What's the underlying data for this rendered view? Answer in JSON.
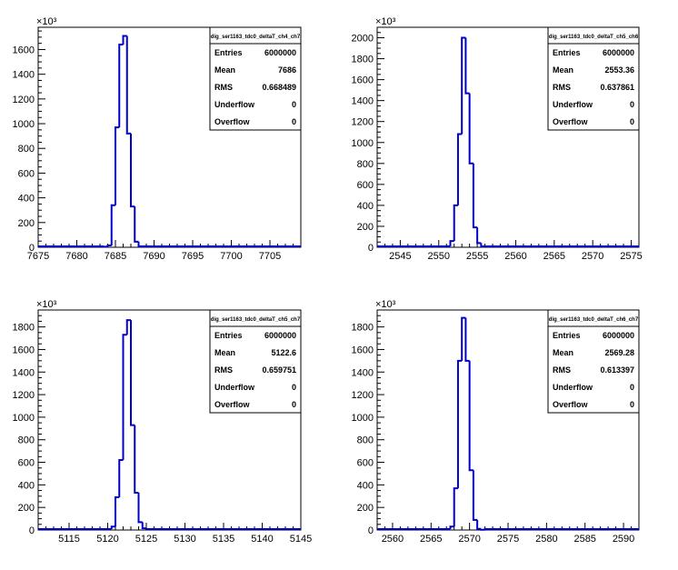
{
  "panels": [
    {
      "multiplier": "×10³",
      "stats": {
        "title": "dig_ser1163_tdc0_deltaT_ch4_ch7",
        "rows": [
          {
            "label": "Entries",
            "value": "6000000"
          },
          {
            "label": "Mean",
            "value": "7686"
          },
          {
            "label": "RMS",
            "value": "0.668489"
          },
          {
            "label": "Underflow",
            "value": "0"
          },
          {
            "label": "Overflow",
            "value": "0"
          }
        ]
      },
      "chart_data": {
        "type": "histogram",
        "title": "dig_ser1163_tdc0_deltaT_ch4_ch7",
        "xlim": [
          7675,
          7709
        ],
        "ylim": [
          0,
          1780
        ],
        "xticks": [
          7675,
          7680,
          7685,
          7690,
          7695,
          7700,
          7705
        ],
        "yticks": [
          0,
          200,
          400,
          600,
          800,
          1000,
          1200,
          1400,
          1600
        ],
        "bin_width": 0.5,
        "edges": [
          7683.5,
          7684,
          7684.5,
          7685,
          7685.5,
          7686,
          7686.5,
          7687,
          7687.5,
          7688
        ],
        "values": [
          5,
          15,
          340,
          970,
          1640,
          1710,
          920,
          330,
          45
        ]
      }
    },
    {
      "multiplier": "×10³",
      "stats": {
        "title": "dig_ser1163_tdc0_deltaT_ch5_ch6",
        "rows": [
          {
            "label": "Entries",
            "value": "6000000"
          },
          {
            "label": "Mean",
            "value": "2553.36"
          },
          {
            "label": "RMS",
            "value": "0.637861"
          },
          {
            "label": "Underflow",
            "value": "0"
          },
          {
            "label": "Overflow",
            "value": "0"
          }
        ]
      },
      "chart_data": {
        "type": "histogram",
        "title": "dig_ser1163_tdc0_deltaT_ch5_ch6",
        "xlim": [
          2542,
          2576
        ],
        "ylim": [
          0,
          2100
        ],
        "xticks": [
          2545,
          2550,
          2555,
          2560,
          2565,
          2570,
          2575
        ],
        "yticks": [
          0,
          200,
          400,
          600,
          800,
          1000,
          1200,
          1400,
          1600,
          1800,
          2000
        ],
        "bin_width": 0.5,
        "edges": [
          2551,
          2551.5,
          2552,
          2552.5,
          2553,
          2553.5,
          2554,
          2554.5,
          2555,
          2555.5
        ],
        "values": [
          10,
          60,
          400,
          1080,
          2000,
          1470,
          800,
          190,
          40
        ]
      }
    },
    {
      "multiplier": "×10³",
      "stats": {
        "title": "dig_ser1163_tdc0_deltaT_ch5_ch7",
        "rows": [
          {
            "label": "Entries",
            "value": "6000000"
          },
          {
            "label": "Mean",
            "value": "5122.6"
          },
          {
            "label": "RMS",
            "value": "0.659751"
          },
          {
            "label": "Underflow",
            "value": "0"
          },
          {
            "label": "Overflow",
            "value": "0"
          }
        ]
      },
      "chart_data": {
        "type": "histogram",
        "title": "dig_ser1163_tdc0_deltaT_ch5_ch7",
        "xlim": [
          5111,
          5145
        ],
        "ylim": [
          0,
          1950
        ],
        "xticks": [
          5115,
          5120,
          5125,
          5130,
          5135,
          5140,
          5145
        ],
        "yticks": [
          0,
          200,
          400,
          600,
          800,
          1000,
          1200,
          1400,
          1600,
          1800
        ],
        "bin_width": 0.5,
        "edges": [
          5120.5,
          5121,
          5121.5,
          5122,
          5122.5,
          5123,
          5123.5,
          5124,
          5124.5,
          5125
        ],
        "values": [
          30,
          290,
          620,
          1730,
          1860,
          930,
          330,
          70,
          15
        ]
      }
    },
    {
      "multiplier": "×10³",
      "stats": {
        "title": "dig_ser1163_tdc0_deltaT_ch6_ch7",
        "rows": [
          {
            "label": "Entries",
            "value": "6000000"
          },
          {
            "label": "Mean",
            "value": "2569.28"
          },
          {
            "label": "RMS",
            "value": "0.613397"
          },
          {
            "label": "Underflow",
            "value": "0"
          },
          {
            "label": "Overflow",
            "value": "0"
          }
        ]
      },
      "chart_data": {
        "type": "histogram",
        "title": "dig_ser1163_tdc0_deltaT_ch6_ch7",
        "xlim": [
          2558,
          2592
        ],
        "ylim": [
          0,
          1950
        ],
        "xticks": [
          2560,
          2565,
          2570,
          2575,
          2580,
          2585,
          2590
        ],
        "yticks": [
          0,
          200,
          400,
          600,
          800,
          1000,
          1200,
          1400,
          1600,
          1800
        ],
        "bin_width": 0.5,
        "edges": [
          2567.5,
          2568,
          2568.5,
          2569,
          2569.5,
          2570,
          2570.5,
          2571,
          2571.5,
          2572
        ],
        "values": [
          30,
          370,
          1500,
          1880,
          1500,
          530,
          90,
          10,
          2
        ]
      }
    }
  ],
  "colors": {
    "histogram_line": "#0000cc",
    "axis": "#000000",
    "background": "#ffffff"
  }
}
